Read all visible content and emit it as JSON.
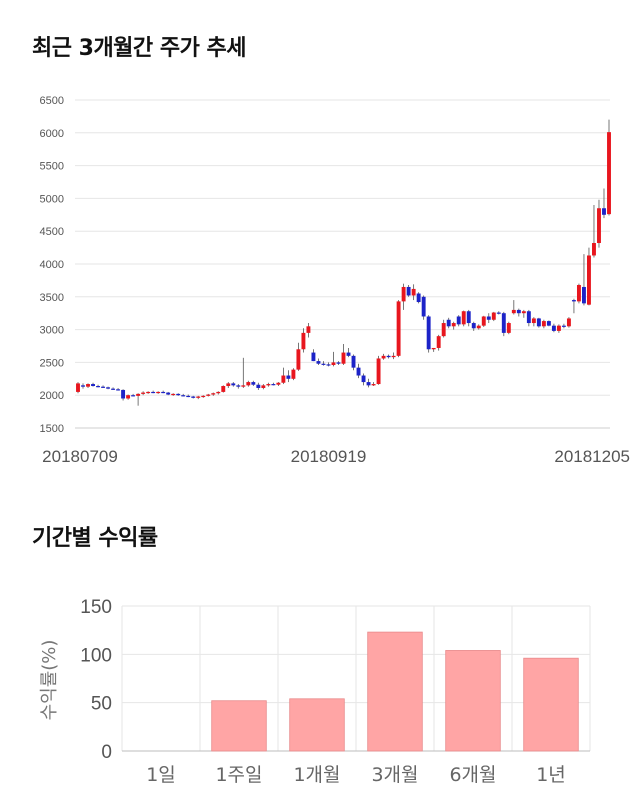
{
  "price_section": {
    "title": "최근 3개월간 주가 추세"
  },
  "return_section": {
    "title": "기간별 수익률"
  },
  "colors": {
    "up": "#e8161e",
    "down": "#1c23c8",
    "bar": "#ffa5a5",
    "bar_stroke": "#e8898a",
    "grid": "#e6e6e6"
  },
  "chart_data": [
    {
      "type": "candlestick",
      "title": "최근 3개월간 주가 추세",
      "ylim": [
        1500,
        6500
      ],
      "yticks": [
        1500,
        2000,
        2500,
        3000,
        3500,
        4000,
        4500,
        5000,
        5500,
        6000,
        6500
      ],
      "xtick_labels": [
        {
          "label": "20180709",
          "index": 0
        },
        {
          "label": "20180919",
          "index": 50
        },
        {
          "label": "20181205",
          "index": 105
        }
      ],
      "candles": [
        [
          2050,
          2200,
          2030,
          2180
        ],
        [
          2150,
          2180,
          2100,
          2130
        ],
        [
          2130,
          2180,
          2110,
          2170
        ],
        [
          2170,
          2190,
          2130,
          2140
        ],
        [
          2140,
          2160,
          2120,
          2130
        ],
        [
          2130,
          2150,
          2110,
          2120
        ],
        [
          2120,
          2130,
          2090,
          2100
        ],
        [
          2100,
          2120,
          2080,
          2090
        ],
        [
          2090,
          2110,
          2070,
          2080
        ],
        [
          2080,
          2090,
          1920,
          1950
        ],
        [
          1950,
          2010,
          1930,
          2000
        ],
        [
          2000,
          2020,
          1980,
          1990
        ],
        [
          1990,
          2030,
          1840,
          2020
        ],
        [
          2020,
          2060,
          2000,
          2040
        ],
        [
          2040,
          2060,
          2020,
          2050
        ],
        [
          2050,
          2070,
          2030,
          2040
        ],
        [
          2040,
          2060,
          2020,
          2050
        ],
        [
          2050,
          2070,
          2030,
          2040
        ],
        [
          2040,
          2050,
          2000,
          2010
        ],
        [
          2010,
          2030,
          1990,
          2020
        ],
        [
          2020,
          2030,
          1990,
          2000
        ],
        [
          2000,
          2020,
          1980,
          1990
        ],
        [
          1990,
          2010,
          1970,
          1980
        ],
        [
          1980,
          1990,
          1950,
          1960
        ],
        [
          1960,
          1990,
          1940,
          1980
        ],
        [
          1980,
          2000,
          1960,
          1990
        ],
        [
          1990,
          2020,
          1980,
          2010
        ],
        [
          2010,
          2040,
          1990,
          2030
        ],
        [
          2030,
          2060,
          2010,
          2050
        ],
        [
          2050,
          2150,
          2040,
          2140
        ],
        [
          2140,
          2200,
          2110,
          2180
        ],
        [
          2180,
          2200,
          2130,
          2150
        ],
        [
          2150,
          2170,
          2100,
          2130
        ],
        [
          2130,
          2570,
          2110,
          2150
        ],
        [
          2150,
          2220,
          2130,
          2200
        ],
        [
          2200,
          2220,
          2140,
          2160
        ],
        [
          2160,
          2190,
          2080,
          2110
        ],
        [
          2110,
          2170,
          2090,
          2150
        ],
        [
          2150,
          2190,
          2130,
          2170
        ],
        [
          2170,
          2190,
          2150,
          2160
        ],
        [
          2160,
          2200,
          2140,
          2190
        ],
        [
          2190,
          2420,
          2170,
          2300
        ],
        [
          2300,
          2380,
          2200,
          2250
        ],
        [
          2250,
          2410,
          2230,
          2390
        ],
        [
          2390,
          2800,
          2370,
          2700
        ],
        [
          2700,
          3020,
          2650,
          2950
        ],
        [
          2950,
          3100,
          2880,
          3050
        ],
        [
          2650,
          2700,
          2520,
          2520
        ],
        [
          2520,
          2560,
          2460,
          2480
        ],
        [
          2480,
          2520,
          2450,
          2470
        ],
        [
          2470,
          2500,
          2440,
          2460
        ],
        [
          2460,
          2660,
          2440,
          2500
        ],
        [
          2500,
          2520,
          2460,
          2480
        ],
        [
          2480,
          2780,
          2460,
          2650
        ],
        [
          2650,
          2720,
          2580,
          2600
        ],
        [
          2600,
          2620,
          2380,
          2420
        ],
        [
          2420,
          2480,
          2260,
          2300
        ],
        [
          2300,
          2330,
          2150,
          2200
        ],
        [
          2200,
          2250,
          2120,
          2150
        ],
        [
          2150,
          2200,
          2140,
          2170
        ],
        [
          2170,
          2600,
          2160,
          2560
        ],
        [
          2560,
          2630,
          2540,
          2600
        ],
        [
          2600,
          2620,
          2560,
          2580
        ],
        [
          2580,
          2650,
          2550,
          2600
        ],
        [
          2600,
          3450,
          2580,
          3430
        ],
        [
          3430,
          3700,
          3300,
          3650
        ],
        [
          3650,
          3680,
          3500,
          3520
        ],
        [
          3520,
          3690,
          3450,
          3620
        ],
        [
          3550,
          3570,
          3400,
          3420
        ],
        [
          3500,
          3520,
          3150,
          3200
        ],
        [
          3200,
          3220,
          2650,
          2700
        ],
        [
          2700,
          2720,
          2660,
          2720
        ],
        [
          2720,
          2920,
          2680,
          2900
        ],
        [
          2900,
          3150,
          2880,
          3100
        ],
        [
          3150,
          3180,
          3020,
          3050
        ],
        [
          3050,
          3120,
          3000,
          3100
        ],
        [
          3200,
          3220,
          3050,
          3080
        ],
        [
          3080,
          3290,
          3050,
          3280
        ],
        [
          3280,
          3300,
          3050,
          3100
        ],
        [
          3100,
          3120,
          2980,
          3020
        ],
        [
          3020,
          3080,
          3000,
          3060
        ],
        [
          3060,
          3210,
          3040,
          3200
        ],
        [
          3200,
          3250,
          3100,
          3150
        ],
        [
          3150,
          3270,
          3130,
          3260
        ],
        [
          3260,
          3280,
          3230,
          3250
        ],
        [
          3250,
          3270,
          2900,
          2950
        ],
        [
          2950,
          3120,
          2930,
          3100
        ],
        [
          3250,
          3450,
          3230,
          3300
        ],
        [
          3300,
          3320,
          3200,
          3250
        ],
        [
          3250,
          3300,
          3180,
          3280
        ],
        [
          3280,
          3300,
          3050,
          3100
        ],
        [
          3100,
          3190,
          3050,
          3170
        ],
        [
          3170,
          3180,
          3030,
          3050
        ],
        [
          3050,
          3150,
          3020,
          3130
        ],
        [
          3130,
          3140,
          3050,
          3060
        ],
        [
          3060,
          3090,
          2960,
          2980
        ],
        [
          2980,
          3080,
          2950,
          3060
        ],
        [
          3060,
          3090,
          3020,
          3050
        ],
        [
          3050,
          3190,
          3030,
          3170
        ],
        [
          3450,
          3470,
          3250,
          3430
        ],
        [
          3430,
          3700,
          3400,
          3680
        ],
        [
          3650,
          4150,
          3370,
          3400
        ],
        [
          3380,
          4250,
          3370,
          4130
        ],
        [
          4130,
          4900,
          4100,
          4320
        ],
        [
          4320,
          4980,
          4250,
          4850
        ],
        [
          4850,
          5150,
          4700,
          4750
        ],
        [
          4760,
          6200,
          4740,
          6010
        ]
      ]
    },
    {
      "type": "bar",
      "title": "기간별 수익률",
      "ylabel": "수익률(%)",
      "categories": [
        "1일",
        "1주일",
        "1개월",
        "3개월",
        "6개월",
        "1년"
      ],
      "values": [
        0,
        52,
        54,
        123,
        104,
        96
      ],
      "ylim": [
        0,
        150
      ],
      "yticks": [
        0,
        50,
        100,
        150
      ]
    }
  ]
}
